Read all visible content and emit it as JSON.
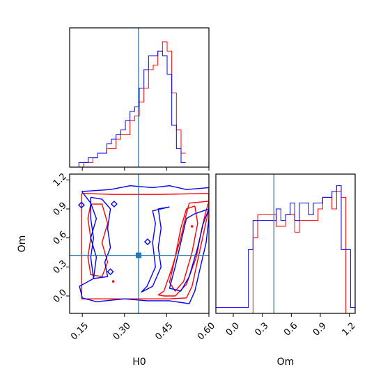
{
  "chart_data": {
    "type": "corner",
    "parameters": [
      "H0",
      "Om"
    ],
    "truth": {
      "H0": 0.35,
      "Om": 0.42
    },
    "colors": {
      "red": "#ff0000",
      "blue": "#0000ff",
      "truth": "#1f77b4"
    },
    "xlabel_h0": "H0",
    "xlabel_om": "Om",
    "ylabel_om": "Om",
    "h0_range": [
      0.105,
      0.6
    ],
    "om_range": [
      -0.18,
      1.26
    ],
    "h0_ticks": [
      {
        "v": 0.15,
        "label": "0.15"
      },
      {
        "v": 0.3,
        "label": "0.30"
      },
      {
        "v": 0.45,
        "label": "0.45"
      },
      {
        "v": 0.6,
        "label": "0.60"
      }
    ],
    "om_ticks": [
      {
        "v": 0.0,
        "label": "0.0"
      },
      {
        "v": 0.3,
        "label": "0.3"
      },
      {
        "v": 0.6,
        "label": "0.6"
      },
      {
        "v": 0.9,
        "label": "0.9"
      },
      {
        "v": 1.2,
        "label": "1.2"
      }
    ],
    "hist_h0": {
      "bin_edges_start": 0.105,
      "bin_width": 0.0165,
      "series": [
        {
          "color": "red",
          "counts": [
            0,
            0,
            0,
            1,
            1,
            2,
            3,
            3,
            4,
            4,
            6,
            7,
            7,
            10,
            11,
            14,
            17,
            21,
            22,
            25,
            27,
            25,
            16,
            8,
            3
          ]
        },
        {
          "color": "blue",
          "counts": [
            0,
            0,
            1,
            1,
            2,
            2,
            3,
            3,
            5,
            6,
            7,
            8,
            10,
            12,
            13,
            17,
            21,
            24,
            24,
            25,
            24,
            20,
            9,
            4,
            1
          ]
        }
      ],
      "ymax": 30
    },
    "hist_om": {
      "bin_edges_start": -0.18,
      "bin_width": 0.048,
      "series": [
        {
          "color": "red",
          "counts": [
            0,
            0,
            0,
            0,
            0,
            0,
            0,
            0,
            13,
            17,
            17,
            17,
            17,
            15,
            15,
            17,
            17,
            14,
            16,
            16,
            16,
            16,
            18,
            20,
            20,
            18,
            21,
            20,
            0,
            0,
            0
          ]
        },
        {
          "color": "blue",
          "counts": [
            1,
            1,
            1,
            1,
            1,
            1,
            1,
            11,
            16,
            16,
            16,
            16,
            16,
            18,
            16,
            17,
            19,
            16,
            19,
            19,
            17,
            19,
            19,
            20,
            20,
            21,
            22,
            11,
            11,
            1,
            1
          ]
        }
      ],
      "ymax": 24
    },
    "contours_red": [
      [
        [
          0.148,
          1.06
        ],
        [
          0.26,
          1.05
        ],
        [
          0.42,
          1.05
        ],
        [
          0.6,
          1.06
        ],
        [
          0.6,
          0.9
        ],
        [
          0.585,
          0.7
        ],
        [
          0.57,
          0.5
        ],
        [
          0.555,
          0.3
        ],
        [
          0.54,
          0.1
        ],
        [
          0.52,
          -0.02
        ],
        [
          0.46,
          -0.03
        ],
        [
          0.3,
          -0.03
        ],
        [
          0.2,
          -0.03
        ],
        [
          0.148,
          -0.03
        ],
        [
          0.148,
          0.3
        ],
        [
          0.148,
          0.7
        ],
        [
          0.148,
          1.06
        ]
      ],
      [
        [
          0.6,
          0.98
        ],
        [
          0.53,
          0.96
        ],
        [
          0.52,
          0.85
        ],
        [
          0.5,
          0.6
        ],
        [
          0.47,
          0.3
        ],
        [
          0.44,
          0.05
        ],
        [
          0.42,
          0.01
        ],
        [
          0.44,
          0.0
        ],
        [
          0.48,
          0.0
        ],
        [
          0.52,
          0.12
        ],
        [
          0.555,
          0.4
        ],
        [
          0.575,
          0.7
        ],
        [
          0.59,
          0.88
        ],
        [
          0.6,
          0.98
        ]
      ],
      [
        [
          0.55,
          0.93
        ],
        [
          0.52,
          0.9
        ],
        [
          0.5,
          0.7
        ],
        [
          0.48,
          0.4
        ],
        [
          0.46,
          0.14
        ],
        [
          0.48,
          0.05
        ],
        [
          0.51,
          0.15
        ],
        [
          0.54,
          0.45
        ],
        [
          0.56,
          0.75
        ],
        [
          0.55,
          0.93
        ]
      ],
      [
        [
          0.18,
          0.95
        ],
        [
          0.22,
          0.95
        ],
        [
          0.24,
          0.75
        ],
        [
          0.22,
          0.55
        ],
        [
          0.24,
          0.35
        ],
        [
          0.22,
          0.2
        ],
        [
          0.18,
          0.22
        ],
        [
          0.17,
          0.4
        ],
        [
          0.18,
          0.6
        ],
        [
          0.17,
          0.8
        ],
        [
          0.18,
          0.95
        ]
      ]
    ],
    "contours_blue": [
      [
        [
          0.148,
          1.08
        ],
        [
          0.25,
          1.1
        ],
        [
          0.32,
          1.14
        ],
        [
          0.4,
          1.12
        ],
        [
          0.46,
          1.14
        ],
        [
          0.52,
          1.1
        ],
        [
          0.6,
          1.12
        ],
        [
          0.6,
          0.8
        ],
        [
          0.59,
          0.55
        ],
        [
          0.57,
          0.3
        ],
        [
          0.55,
          0.05
        ],
        [
          0.53,
          -0.08
        ],
        [
          0.46,
          -0.05
        ],
        [
          0.38,
          -0.05
        ],
        [
          0.3,
          -0.03
        ],
        [
          0.2,
          -0.06
        ],
        [
          0.15,
          -0.02
        ],
        [
          0.14,
          0.1
        ],
        [
          0.19,
          0.18
        ],
        [
          0.2,
          0.4
        ],
        [
          0.18,
          0.6
        ],
        [
          0.2,
          0.8
        ],
        [
          0.18,
          0.96
        ],
        [
          0.148,
          1.08
        ]
      ],
      [
        [
          0.6,
          0.9
        ],
        [
          0.55,
          0.85
        ],
        [
          0.52,
          0.8
        ],
        [
          0.5,
          0.55
        ],
        [
          0.48,
          0.3
        ],
        [
          0.46,
          0.08
        ],
        [
          0.5,
          0.05
        ],
        [
          0.53,
          0.2
        ],
        [
          0.56,
          0.5
        ],
        [
          0.58,
          0.75
        ],
        [
          0.6,
          0.9
        ]
      ],
      [
        [
          0.46,
          0.92
        ],
        [
          0.42,
          0.9
        ],
        [
          0.43,
          0.7
        ],
        [
          0.42,
          0.5
        ],
        [
          0.43,
          0.3
        ],
        [
          0.4,
          0.1
        ],
        [
          0.36,
          0.04
        ],
        [
          0.38,
          0.1
        ],
        [
          0.41,
          0.3
        ],
        [
          0.4,
          0.55
        ],
        [
          0.41,
          0.75
        ],
        [
          0.4,
          0.88
        ],
        [
          0.46,
          0.92
        ]
      ],
      [
        [
          0.18,
          1.02
        ],
        [
          0.22,
          1.0
        ],
        [
          0.25,
          0.9
        ],
        [
          0.24,
          0.7
        ],
        [
          0.25,
          0.5
        ],
        [
          0.23,
          0.35
        ],
        [
          0.24,
          0.2
        ],
        [
          0.19,
          0.18
        ],
        [
          0.18,
          0.4
        ],
        [
          0.19,
          0.6
        ],
        [
          0.18,
          0.8
        ],
        [
          0.18,
          1.02
        ]
      ]
    ],
    "blue_markers": [
      [
        0.147,
        0.94
      ],
      [
        0.382,
        0.56
      ],
      [
        0.263,
        0.95
      ],
      [
        0.25,
        0.25
      ]
    ],
    "red_markers": [
      [
        0.54,
        0.72
      ],
      [
        0.26,
        0.15
      ]
    ]
  }
}
